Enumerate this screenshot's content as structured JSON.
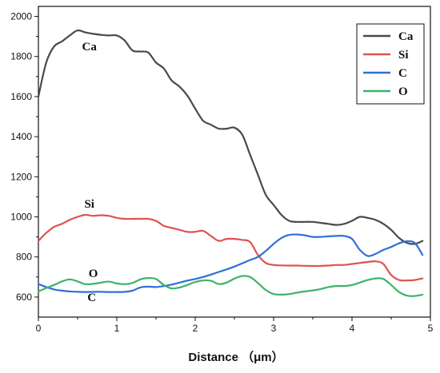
{
  "chart_data": {
    "type": "line",
    "title": "",
    "xlabel": "Distance （μm）",
    "ylabel": "",
    "xlim": [
      0,
      5
    ],
    "ylim": [
      500,
      2050
    ],
    "x_ticks": [
      "0",
      "1",
      "2",
      "3",
      "4",
      "5"
    ],
    "y_ticks": [
      "600",
      "800",
      "1000",
      "1200",
      "1400",
      "1600",
      "1800",
      "2000"
    ],
    "grid": false,
    "legend_position": "top-right",
    "series": [
      {
        "name": "Ca",
        "color": "#4a4a4a",
        "x": [
          0,
          0.1,
          0.2,
          0.3,
          0.4,
          0.5,
          0.6,
          0.7,
          0.8,
          0.9,
          1.0,
          1.1,
          1.2,
          1.3,
          1.4,
          1.5,
          1.6,
          1.7,
          1.8,
          1.9,
          2.0,
          2.1,
          2.2,
          2.3,
          2.4,
          2.5,
          2.6,
          2.7,
          2.8,
          2.9,
          3.0,
          3.1,
          3.2,
          3.3,
          3.4,
          3.5,
          3.6,
          3.7,
          3.8,
          3.9,
          4.0,
          4.1,
          4.2,
          4.3,
          4.4,
          4.5,
          4.6,
          4.7,
          4.8,
          4.9
        ],
        "values": [
          1600,
          1770,
          1850,
          1875,
          1905,
          1930,
          1920,
          1913,
          1908,
          1905,
          1905,
          1880,
          1830,
          1825,
          1820,
          1770,
          1740,
          1680,
          1650,
          1605,
          1540,
          1480,
          1460,
          1440,
          1440,
          1445,
          1410,
          1310,
          1210,
          1110,
          1060,
          1010,
          980,
          975,
          975,
          975,
          970,
          965,
          960,
          965,
          980,
          1000,
          995,
          985,
          965,
          935,
          895,
          870,
          865,
          880
        ]
      },
      {
        "name": "Si",
        "color": "#e05252",
        "x": [
          0,
          0.1,
          0.2,
          0.3,
          0.4,
          0.5,
          0.6,
          0.7,
          0.8,
          0.9,
          1.0,
          1.1,
          1.2,
          1.3,
          1.4,
          1.5,
          1.6,
          1.7,
          1.8,
          1.9,
          2.0,
          2.1,
          2.2,
          2.3,
          2.4,
          2.5,
          2.6,
          2.7,
          2.8,
          2.9,
          3.0,
          3.1,
          3.2,
          3.3,
          3.4,
          3.5,
          3.6,
          3.7,
          3.8,
          3.9,
          4.0,
          4.1,
          4.2,
          4.3,
          4.4,
          4.5,
          4.6,
          4.7,
          4.8,
          4.9
        ],
        "values": [
          880,
          920,
          950,
          965,
          985,
          1000,
          1010,
          1005,
          1008,
          1005,
          995,
          990,
          990,
          990,
          990,
          980,
          955,
          945,
          935,
          925,
          925,
          930,
          905,
          880,
          890,
          890,
          885,
          875,
          810,
          770,
          760,
          758,
          757,
          757,
          756,
          755,
          755,
          757,
          760,
          760,
          765,
          770,
          775,
          778,
          765,
          710,
          685,
          683,
          685,
          693
        ]
      },
      {
        "name": "C",
        "color": "#2f6fd8",
        "x": [
          0,
          0.1,
          0.2,
          0.3,
          0.4,
          0.5,
          0.6,
          0.7,
          0.8,
          0.9,
          1.0,
          1.1,
          1.2,
          1.3,
          1.4,
          1.5,
          1.6,
          1.7,
          1.8,
          1.9,
          2.0,
          2.1,
          2.2,
          2.3,
          2.4,
          2.5,
          2.6,
          2.7,
          2.8,
          2.9,
          3.0,
          3.1,
          3.2,
          3.3,
          3.4,
          3.5,
          3.6,
          3.7,
          3.8,
          3.9,
          4.0,
          4.1,
          4.2,
          4.3,
          4.4,
          4.5,
          4.6,
          4.7,
          4.8,
          4.9
        ],
        "values": [
          665,
          650,
          638,
          632,
          628,
          626,
          625,
          626,
          626,
          625,
          625,
          626,
          632,
          648,
          652,
          650,
          655,
          662,
          672,
          682,
          690,
          700,
          712,
          725,
          738,
          752,
          768,
          785,
          800,
          830,
          865,
          895,
          910,
          912,
          908,
          900,
          900,
          903,
          905,
          905,
          890,
          835,
          805,
          815,
          835,
          850,
          868,
          878,
          870,
          810
        ]
      },
      {
        "name": "O",
        "color": "#3db36a",
        "x": [
          0,
          0.1,
          0.2,
          0.3,
          0.4,
          0.5,
          0.6,
          0.7,
          0.8,
          0.9,
          1.0,
          1.1,
          1.2,
          1.3,
          1.4,
          1.5,
          1.6,
          1.7,
          1.8,
          1.9,
          2.0,
          2.1,
          2.2,
          2.3,
          2.4,
          2.5,
          2.6,
          2.7,
          2.8,
          2.9,
          3.0,
          3.1,
          3.2,
          3.3,
          3.4,
          3.5,
          3.6,
          3.7,
          3.8,
          3.9,
          4.0,
          4.1,
          4.2,
          4.3,
          4.4,
          4.5,
          4.6,
          4.7,
          4.8,
          4.9
        ],
        "values": [
          628,
          645,
          660,
          678,
          688,
          678,
          664,
          666,
          672,
          677,
          668,
          664,
          670,
          688,
          695,
          690,
          660,
          643,
          648,
          660,
          675,
          683,
          681,
          665,
          672,
          692,
          705,
          700,
          670,
          635,
          615,
          612,
          615,
          622,
          628,
          633,
          640,
          650,
          655,
          655,
          660,
          672,
          685,
          693,
          690,
          660,
          625,
          607,
          605,
          612
        ]
      }
    ],
    "annotations": [
      {
        "text": "Ca",
        "x": 0.65,
        "y": 1830
      },
      {
        "text": "Si",
        "x": 0.65,
        "y": 1045
      },
      {
        "text": "O",
        "x": 0.7,
        "y": 700
      },
      {
        "text": "C",
        "x": 0.68,
        "y": 580
      }
    ]
  }
}
